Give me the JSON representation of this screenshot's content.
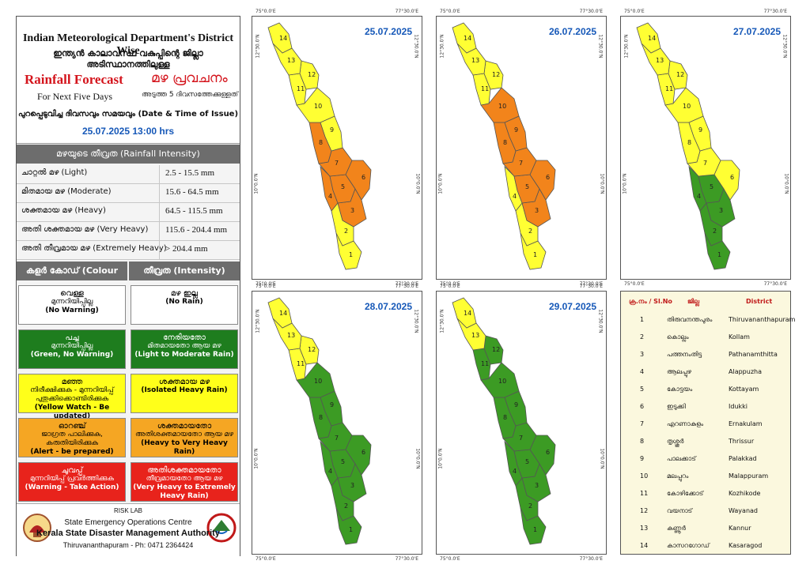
{
  "header": {
    "title_en": "Indian Meteorological Department's District Wise",
    "title_ml": "ഇന്ത്യൻ കാലാവസ്ഥ വകുപ്പിന്റെ ജില്ലാ അടിസ്ഥാനത്തിലുള്ള",
    "rainfall_en": "Rainfall Forecast",
    "rainfall_ml": "മഴ പ്രവചനം",
    "sub_en": "For Next Five Days",
    "sub_ml": "അടുത്ത 5 ദിവസത്തേക്കുള്ളത്"
  },
  "issue": {
    "label": "പുറപ്പെടുവിച്ച ദിവസവും സമയവും (Date & Time of Issue)",
    "value": "25.07.2025  13:00 hrs"
  },
  "intensity": {
    "heading": "മഴയുടെ തീവ്രത (Rainfall Intensity)",
    "rows": [
      {
        "label": "ചാറ്റൽ മഴ (Light)",
        "range": "2.5 - 15.5 mm"
      },
      {
        "label": "മിതമായ മഴ (Moderate)",
        "range": "15.6 - 64.5 mm"
      },
      {
        "label": "ശക്തമായ മഴ (Heavy)",
        "range": "64.5 - 115.5 mm"
      },
      {
        "label": "അതി ശക്തമായ മഴ (Very Heavy)",
        "range": "115.6 - 204.4 mm"
      },
      {
        "label": "അതി തീവ്രമായ മഴ (Extremely Heavy)",
        "range": "> 204.4 mm"
      }
    ]
  },
  "color_code": {
    "head_left": "കളർ കോഡ് (Colour Code)",
    "head_right": "തീവ്രത (Intensity)",
    "rows": [
      {
        "color": "#ffffff",
        "text_color": "#000000",
        "left_a": "വെള്ള",
        "left_b": "മുന്നറിയിപ്പില്ല",
        "left_c": "(No Warning)",
        "right_a": "മഴ ഇല്ല",
        "right_c": "(No Rain)"
      },
      {
        "color": "#1e7d1e",
        "text_color": "#ffffff",
        "left_a": "പച്ച",
        "left_b": "മുന്നറിയിപ്പില്ല",
        "left_c": "(Green, No Warning)",
        "right_a": "നേരിയതോ",
        "right_b": "മിതമായതോ ആയ മഴ",
        "right_c": "(Light to Moderate Rain)"
      },
      {
        "color": "#ffff1a",
        "text_color": "#000000",
        "left_a": "മഞ്ഞ",
        "left_b": "നിരീക്ഷിക്കുക - മുന്നറിയിപ്പ് പുതുക്കിക്കൊണ്ടിരിക്കുക",
        "left_c": "(Yellow Watch - Be updated)",
        "right_a": "ശക്തമായ മഴ",
        "right_c": "(Isolated Heavy Rain)"
      },
      {
        "color": "#f5a623",
        "text_color": "#000000",
        "left_a": "ഓറഞ്ച്",
        "left_b": "ജാഗ്രത പാലിക്കുക, കരുതിയിരിക്കുക",
        "left_c": "(Alert - be prepared)",
        "right_a": "ശക്തമായതോ",
        "right_b": "അതിശക്തമായതോ ആയ മഴ",
        "right_c": "(Heavy to Very Heavy Rain)"
      },
      {
        "color": "#e8231c",
        "text_color": "#ffffff",
        "left_a": "ചുവപ്പ്",
        "left_b": "മുന്നറിയിപ്പ് പ്രവർത്തിക്കുക",
        "left_c": "(Warning - Take Action)",
        "right_a": "അതിശക്തമായതോ",
        "right_b": "തീവ്രമായതോ ആയ മഴ",
        "right_c": "(Very Heavy to Extremely Heavy Rain)"
      }
    ]
  },
  "footer": {
    "line1": "RISK LAB",
    "line2": "State Emergency Operations Centre",
    "line3": "Kerala State Disaster Management Authority",
    "line4": "Thiruvananthapuram - Ph: 0471 2364424"
  },
  "map_coords": {
    "lon_left": "75°0.0'E",
    "lon_right": "77°30.0'E",
    "lat_top": "12°30.0'N",
    "lat_mid": "10°0.0'N"
  },
  "maps": [
    {
      "date": "25.07.2025",
      "colors": {
        "1": "#ffff33",
        "2": "#ffff33",
        "3": "#f2841b",
        "4": "#f2841b",
        "5": "#f2841b",
        "6": "#f2841b",
        "7": "#f2841b",
        "8": "#f2841b",
        "9": "#ffff33",
        "10": "#ffff33",
        "11": "#ffff33",
        "12": "#ffff33",
        "13": "#ffff33",
        "14": "#ffff33"
      }
    },
    {
      "date": "26.07.2025",
      "colors": {
        "1": "#ffff33",
        "2": "#ffff33",
        "3": "#f2841b",
        "4": "#ffff33",
        "5": "#f2841b",
        "6": "#f2841b",
        "7": "#f2841b",
        "8": "#f2841b",
        "9": "#f2841b",
        "10": "#f2841b",
        "11": "#ffff33",
        "12": "#ffff33",
        "13": "#ffff33",
        "14": "#ffff33"
      }
    },
    {
      "date": "27.07.2025",
      "colors": {
        "1": "#3c9b24",
        "2": "#3c9b24",
        "3": "#3c9b24",
        "4": "#3c9b24",
        "5": "#3c9b24",
        "6": "#ffff33",
        "7": "#ffff33",
        "8": "#ffff33",
        "9": "#ffff33",
        "10": "#ffff33",
        "11": "#ffff33",
        "12": "#ffff33",
        "13": "#ffff33",
        "14": "#ffff33"
      }
    },
    {
      "date": "28.07.2025",
      "colors": {
        "1": "#3c9b24",
        "2": "#3c9b24",
        "3": "#3c9b24",
        "4": "#3c9b24",
        "5": "#3c9b24",
        "6": "#3c9b24",
        "7": "#3c9b24",
        "8": "#3c9b24",
        "9": "#3c9b24",
        "10": "#3c9b24",
        "11": "#ffff33",
        "12": "#ffff33",
        "13": "#ffff33",
        "14": "#ffff33"
      }
    },
    {
      "date": "29.07.2025",
      "colors": {
        "1": "#3c9b24",
        "2": "#3c9b24",
        "3": "#3c9b24",
        "4": "#3c9b24",
        "5": "#3c9b24",
        "6": "#3c9b24",
        "7": "#3c9b24",
        "8": "#3c9b24",
        "9": "#3c9b24",
        "10": "#3c9b24",
        "11": "#3c9b24",
        "12": "#3c9b24",
        "13": "#ffff33",
        "14": "#ffff33"
      }
    }
  ],
  "districts": {
    "head_no": "ക്ര.നം / Sl.No",
    "head_ml": "ജില്ല",
    "head_en": "District",
    "rows": [
      {
        "no": "1",
        "ml": "തിരുവനന്തപുരം",
        "en": "Thiruvananthapuram"
      },
      {
        "no": "2",
        "ml": "കൊല്ലം",
        "en": "Kollam"
      },
      {
        "no": "3",
        "ml": "പത്തനംതിട്ട",
        "en": "Pathanamthitta"
      },
      {
        "no": "4",
        "ml": "ആലപ്പുഴ",
        "en": "Alappuzha"
      },
      {
        "no": "5",
        "ml": "കോട്ടയം",
        "en": "Kottayam"
      },
      {
        "no": "6",
        "ml": "ഇടുക്കി",
        "en": "Idukki"
      },
      {
        "no": "7",
        "ml": "എറണാകുളം",
        "en": "Ernakulam"
      },
      {
        "no": "8",
        "ml": "തൃശ്ശൂർ",
        "en": "Thrissur"
      },
      {
        "no": "9",
        "ml": "പാലക്കാട്",
        "en": "Palakkad"
      },
      {
        "no": "10",
        "ml": "മലപ്പുറം",
        "en": "Malappuram"
      },
      {
        "no": "11",
        "ml": "കോഴിക്കോട്",
        "en": "Kozhikode"
      },
      {
        "no": "12",
        "ml": "വയനാട്",
        "en": "Wayanad"
      },
      {
        "no": "13",
        "ml": "കണ്ണൂർ",
        "en": "Kannur"
      },
      {
        "no": "14",
        "ml": "കാസറഗോഡ്",
        "en": "Kasaragod"
      }
    ]
  }
}
